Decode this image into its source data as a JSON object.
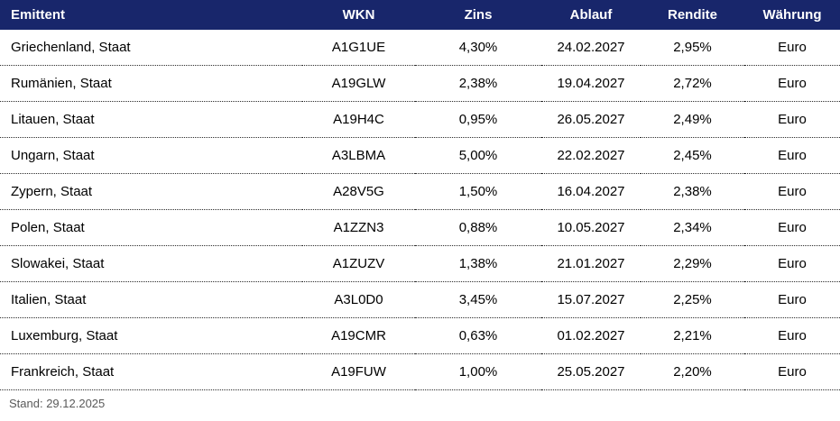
{
  "chart_data": {
    "type": "table",
    "columns": [
      "Emittent",
      "WKN",
      "Zins",
      "Ablauf",
      "Rendite",
      "Währung"
    ],
    "rows": [
      [
        "Griechenland, Staat",
        "A1G1UE",
        "4,30%",
        "24.02.2027",
        "2,95%",
        "Euro"
      ],
      [
        "Rumänien, Staat",
        "A19GLW",
        "2,38%",
        "19.04.2027",
        "2,72%",
        "Euro"
      ],
      [
        "Litauen, Staat",
        "A19H4C",
        "0,95%",
        "26.05.2027",
        "2,49%",
        "Euro"
      ],
      [
        "Ungarn, Staat",
        "A3LBMA",
        "5,00%",
        "22.02.2027",
        "2,45%",
        "Euro"
      ],
      [
        "Zypern, Staat",
        "A28V5G",
        "1,50%",
        "16.04.2027",
        "2,38%",
        "Euro"
      ],
      [
        "Polen, Staat",
        "A1ZZN3",
        "0,88%",
        "10.05.2027",
        "2,34%",
        "Euro"
      ],
      [
        "Slowakei, Staat",
        "A1ZUZV",
        "1,38%",
        "21.01.2027",
        "2,29%",
        "Euro"
      ],
      [
        "Italien, Staat",
        "A3L0D0",
        "3,45%",
        "15.07.2027",
        "2,25%",
        "Euro"
      ],
      [
        "Luxemburg, Staat",
        "A19CMR",
        "0,63%",
        "01.02.2027",
        "2,21%",
        "Euro"
      ],
      [
        "Frankreich, Staat",
        "A19FUW",
        "1,00%",
        "25.05.2027",
        "2,20%",
        "Euro"
      ]
    ],
    "footnote": "Stand: 29.12.2025",
    "layout_hints": {
      "header_position": "top",
      "row_divider_style": "dotted",
      "grid": "horizontal-only"
    }
  },
  "colors": {
    "header_bg": "#18266B",
    "header_text": "#ffffff",
    "body_text": "#000000",
    "row_divider": "#2b2b2b",
    "footnote_text": "#5a5a5a"
  }
}
